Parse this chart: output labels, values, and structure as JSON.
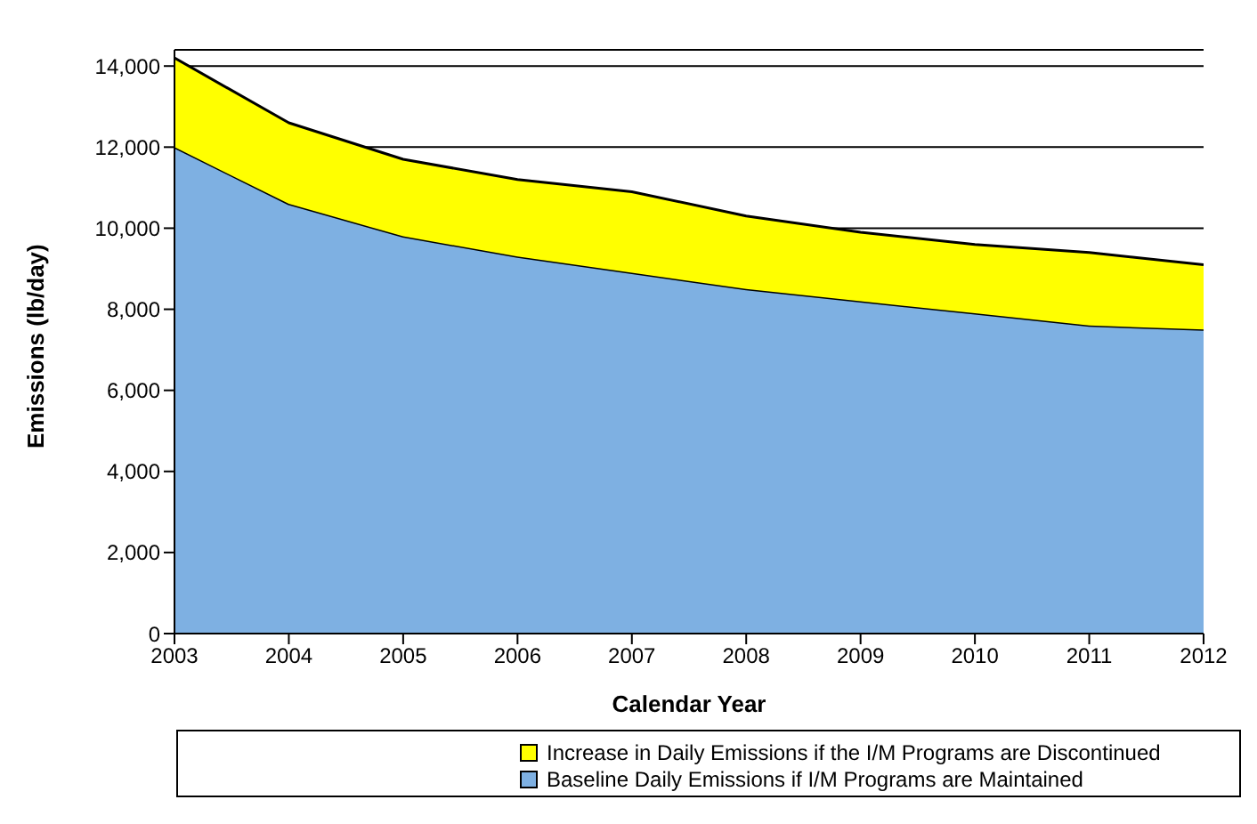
{
  "chart_data": {
    "type": "area",
    "xlabel": "Calendar Year",
    "ylabel": "Emissions (lb/day)",
    "categories": [
      "2003",
      "2004",
      "2005",
      "2006",
      "2007",
      "2008",
      "2009",
      "2010",
      "2011",
      "2012"
    ],
    "stacked": true,
    "series": [
      {
        "name": "Baseline Daily Emissions if I/M Programs are Maintained",
        "color": "#7eb0e2",
        "values": [
          12000,
          10600,
          9800,
          9300,
          8900,
          8500,
          8200,
          7900,
          7600,
          7500
        ]
      },
      {
        "name": "Increase in Daily Emissions if the I/M Programs are Discontinued",
        "color": "#ffff00",
        "values": [
          2200,
          2000,
          1900,
          1900,
          2000,
          1800,
          1700,
          1700,
          1800,
          1600
        ]
      }
    ],
    "ylim": [
      0,
      14400
    ],
    "yticks": [
      0,
      {
        "value": 2000,
        "label": "2,000"
      },
      {
        "value": 4000,
        "label": "4,000"
      },
      {
        "value": 6000,
        "label": "6,000"
      },
      {
        "value": 8000,
        "label": "8,000"
      },
      {
        "value": 10000,
        "label": "10,000"
      },
      {
        "value": 12000,
        "label": "12,000"
      },
      {
        "value": 14000,
        "label": "14,000"
      }
    ],
    "grid": "y",
    "legend": "bottom"
  }
}
